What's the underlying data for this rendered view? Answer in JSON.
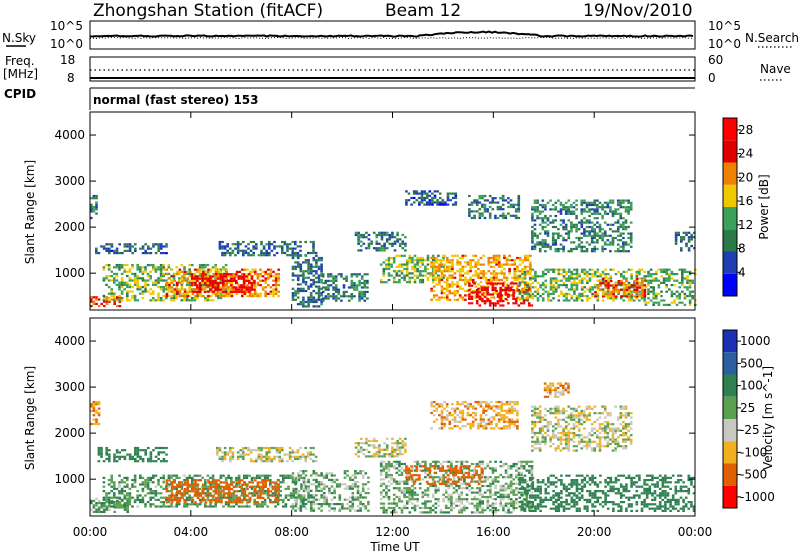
{
  "header": {
    "station": "Zhongshan Station (fitACF)",
    "beam": "Beam 12",
    "date": "19/Nov/2010"
  },
  "colors": {
    "power": [
      "#0000ff",
      "#1f3fb0",
      "#2a7a4a",
      "#3aa05a",
      "#f0c800",
      "#f08000",
      "#e00000",
      "#ff0000"
    ],
    "velocity": [
      "#1d2fb4",
      "#2c5fa0",
      "#2f8050",
      "#5aa050",
      "#c8c8c0",
      "#f0b020",
      "#e06000",
      "#ff0000"
    ]
  },
  "strip": {
    "nsky_label": "N.Sky",
    "nsearch_label": "N.Search",
    "left_top": "10^5",
    "left_bot": "10^0",
    "right_top": "10^5",
    "right_bot": "10^0",
    "freq_label": "Freq.",
    "mhz_label": "[MHz]",
    "freq_top": "18",
    "freq_bot": "8",
    "nave_label": "Nave",
    "nave_top": "60",
    "nave_bot": "0",
    "cpid_label": "CPID",
    "cpid_text": "normal (fast stereo) 153"
  },
  "chart_data": [
    {
      "type": "heatmap",
      "name": "power",
      "ylabel": "Slant Range [km]",
      "xlabel": "Time UT",
      "xlim": [
        0,
        24
      ],
      "ylim": [
        200,
        4500
      ],
      "yticks": [
        "1000",
        "2000",
        "3000",
        "4000"
      ],
      "xticks": [
        "00:00",
        "04:00",
        "08:00",
        "12:00",
        "16:00",
        "20:00",
        "00:00"
      ],
      "colorbar": {
        "label": "Power [dB]",
        "ticks": [
          "4",
          "8",
          "12",
          "16",
          "20",
          "24",
          "28"
        ],
        "range": [
          0,
          30
        ]
      },
      "regions": [
        {
          "t0": 0.0,
          "t1": 1.2,
          "r0": 300,
          "r1": 500,
          "value": 24
        },
        {
          "t0": 0.0,
          "t1": 0.3,
          "r0": 2200,
          "r1": 2700,
          "value": 9
        },
        {
          "t0": 0.2,
          "t1": 3.0,
          "r0": 1450,
          "r1": 1650,
          "value": 7
        },
        {
          "t0": 0.5,
          "t1": 5.5,
          "r0": 400,
          "r1": 1200,
          "value": 14
        },
        {
          "t0": 3.0,
          "t1": 7.5,
          "r0": 500,
          "r1": 1100,
          "value": 20
        },
        {
          "t0": 4.0,
          "t1": 6.5,
          "r0": 600,
          "r1": 1000,
          "value": 26
        },
        {
          "t0": 5.0,
          "t1": 9.0,
          "r0": 1400,
          "r1": 1700,
          "value": 8
        },
        {
          "t0": 8.0,
          "t1": 9.2,
          "r0": 300,
          "r1": 1400,
          "value": 8
        },
        {
          "t0": 9.2,
          "t1": 11.0,
          "r0": 400,
          "r1": 1000,
          "value": 10
        },
        {
          "t0": 10.5,
          "t1": 12.5,
          "r0": 1500,
          "r1": 1900,
          "value": 9
        },
        {
          "t0": 11.5,
          "t1": 14.0,
          "r0": 800,
          "r1": 1400,
          "value": 14
        },
        {
          "t0": 12.5,
          "t1": 14.5,
          "r0": 2500,
          "r1": 2800,
          "value": 7
        },
        {
          "t0": 13.5,
          "t1": 17.5,
          "r0": 400,
          "r1": 1400,
          "value": 19
        },
        {
          "t0": 15.0,
          "t1": 17.5,
          "r0": 300,
          "r1": 800,
          "value": 27
        },
        {
          "t0": 15.0,
          "t1": 17.0,
          "r0": 2200,
          "r1": 2700,
          "value": 9
        },
        {
          "t0": 17.0,
          "t1": 22.0,
          "r0": 400,
          "r1": 1100,
          "value": 14
        },
        {
          "t0": 17.5,
          "t1": 21.5,
          "r0": 1500,
          "r1": 2600,
          "value": 10
        },
        {
          "t0": 20.0,
          "t1": 22.0,
          "r0": 500,
          "r1": 900,
          "value": 22
        },
        {
          "t0": 22.0,
          "t1": 24.0,
          "r0": 300,
          "r1": 1100,
          "value": 13
        },
        {
          "t0": 23.2,
          "t1": 24.0,
          "r0": 1500,
          "r1": 1900,
          "value": 7
        }
      ]
    },
    {
      "type": "heatmap",
      "name": "velocity",
      "ylabel": "Slant Range [km]",
      "xlabel": "Time UT",
      "xlim": [
        0,
        24
      ],
      "ylim": [
        200,
        4500
      ],
      "yticks": [
        "1000",
        "2000",
        "3000",
        "4000"
      ],
      "xticks": [
        "00:00",
        "04:00",
        "08:00",
        "12:00",
        "16:00",
        "20:00",
        "00:00"
      ],
      "colorbar": {
        "label": "Velocity [m s^-1]",
        "ticks": [
          "1000",
          "500",
          "100",
          "25",
          "-25",
          "-100",
          "-500",
          "-1000"
        ]
      },
      "regions": [
        {
          "t0": 0.0,
          "t1": 1.5,
          "r0": 300,
          "r1": 600,
          "value": 100
        },
        {
          "t0": 0.0,
          "t1": 0.4,
          "r0": 2200,
          "r1": 2700,
          "value": -100
        },
        {
          "t0": 0.3,
          "t1": 3.0,
          "r0": 1400,
          "r1": 1700,
          "value": 200
        },
        {
          "t0": 0.5,
          "t1": 8.5,
          "r0": 400,
          "r1": 1100,
          "value": 100
        },
        {
          "t0": 3.0,
          "t1": 7.5,
          "r0": 500,
          "r1": 1000,
          "value": -200
        },
        {
          "t0": 5.0,
          "t1": 9.0,
          "r0": 1400,
          "r1": 1700,
          "value": 0
        },
        {
          "t0": 8.0,
          "t1": 11.0,
          "r0": 300,
          "r1": 1200,
          "value": 60
        },
        {
          "t0": 10.5,
          "t1": 12.5,
          "r0": 1500,
          "r1": 1900,
          "value": 0
        },
        {
          "t0": 11.5,
          "t1": 17.5,
          "r0": 300,
          "r1": 1400,
          "value": 60
        },
        {
          "t0": 12.5,
          "t1": 15.5,
          "r0": 900,
          "r1": 1300,
          "value": -200
        },
        {
          "t0": 13.5,
          "t1": 17.0,
          "r0": 2100,
          "r1": 2700,
          "value": -60
        },
        {
          "t0": 17.0,
          "t1": 24.0,
          "r0": 300,
          "r1": 1100,
          "value": 200
        },
        {
          "t0": 17.5,
          "t1": 21.5,
          "r0": 1600,
          "r1": 2600,
          "value": 0
        },
        {
          "t0": 18.0,
          "t1": 19.0,
          "r0": 2800,
          "r1": 3100,
          "value": -60
        }
      ]
    }
  ]
}
